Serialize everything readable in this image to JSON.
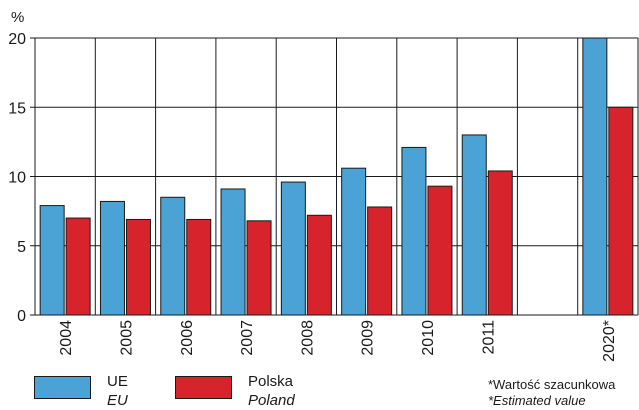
{
  "chart_data": {
    "type": "bar",
    "title": "",
    "ylabel": "%",
    "xlabel": "",
    "ylim": [
      0,
      20
    ],
    "yticks": [
      0,
      5,
      10,
      15,
      20
    ],
    "grid": true,
    "legend_position": "bottom-left",
    "categories": [
      "2004",
      "2005",
      "2006",
      "2007",
      "2008",
      "2009",
      "2010",
      "2011",
      "",
      "2020*"
    ],
    "series": [
      {
        "name": "UE",
        "name_en": "EU",
        "color": "#4aa3d4",
        "values": [
          7.9,
          8.2,
          8.5,
          9.1,
          9.6,
          10.6,
          12.1,
          13.0,
          null,
          20.0
        ]
      },
      {
        "name": "Polska",
        "name_en": "Poland",
        "color": "#d7232c",
        "values": [
          7.0,
          6.9,
          6.9,
          6.8,
          7.2,
          7.8,
          9.3,
          10.4,
          null,
          15.0
        ]
      }
    ]
  },
  "legend": {
    "ue": {
      "label": "UE",
      "label_en": "EU"
    },
    "pl": {
      "label": "Polska",
      "label_en": "Poland"
    }
  },
  "note": {
    "text": "*Wartość szacunkowa",
    "text_en": "*Estimated value"
  }
}
